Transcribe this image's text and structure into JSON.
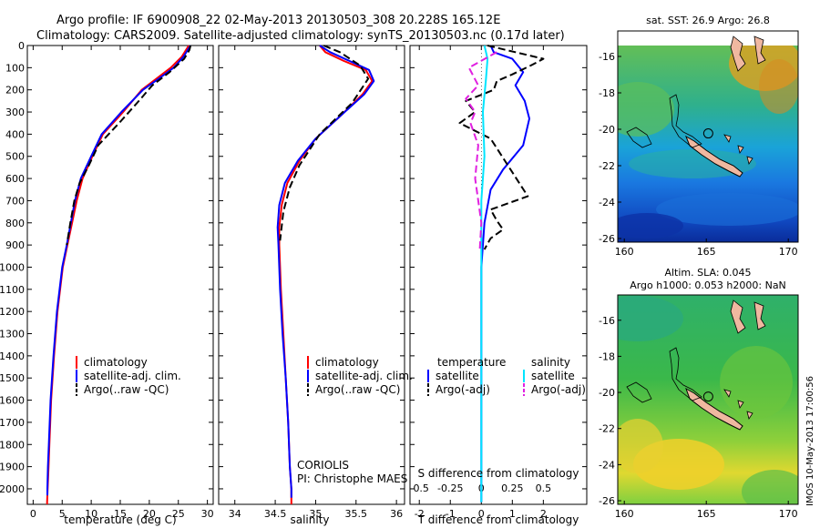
{
  "header": {
    "line1": "Argo profile: IF 6900908_22 02-May-2013 20130503_308 20.228S 165.12E",
    "line2": "Climatology: CARS2009. Satellite-adjusted climatology: synTS_20130503.nc (0.17d later)"
  },
  "colors": {
    "climatology": "#ff0000",
    "satellite": "#0000ff",
    "argo": "#000000",
    "salinity_satellite": "#00e5ff",
    "salinity_argo": "#e020e0"
  },
  "notes": {
    "agency": "CORIOLIS",
    "pi": "PI: Christophe MAES",
    "imos": "IMOS 10-May-2013 17:00:56"
  },
  "chart_data": [
    {
      "type": "line",
      "panel": "temperature",
      "xlabel": "temperature (deg C)",
      "xlim": [
        -1,
        31
      ],
      "ylim": [
        2070,
        0
      ],
      "y_reversed": true,
      "xticks": [
        0,
        5,
        10,
        15,
        20,
        25,
        30
      ],
      "yticks": [
        0,
        100,
        200,
        300,
        400,
        500,
        600,
        700,
        800,
        900,
        1000,
        1100,
        1200,
        1300,
        1400,
        1500,
        1600,
        1700,
        1800,
        1900,
        2000
      ],
      "legend": [
        "climatology",
        "satellite-adj. clim.",
        "Argo(..raw -QC)"
      ],
      "series": [
        {
          "name": "climatology",
          "color": "#ff0000",
          "dash": "",
          "x": [
            26.8,
            25.6,
            23.7,
            21.2,
            18.7,
            15.5,
            12.0,
            10.2,
            8.5,
            7.5,
            6.7,
            5.9,
            5.1,
            4.2,
            3.6,
            3.1,
            2.8,
            2.65,
            2.5,
            2.45,
            2.4,
            2.4
          ],
          "y": [
            0,
            50,
            100,
            150,
            200,
            300,
            400,
            500,
            600,
            700,
            800,
            900,
            1000,
            1200,
            1400,
            1600,
            1800,
            1900,
            2000,
            2030,
            2060,
            2070
          ]
        },
        {
          "name": "satellite-adj. clim.",
          "color": "#0000ff",
          "dash": "",
          "x": [
            27.1,
            26.6,
            25.9,
            24.2,
            21.6,
            18.9,
            15.2,
            11.8,
            10.0,
            8.2,
            7.2,
            6.5,
            5.8,
            5.0,
            4.1,
            3.5,
            3.0,
            2.7,
            2.55,
            2.45,
            2.45
          ],
          "y": [
            0,
            20,
            50,
            100,
            150,
            200,
            300,
            400,
            500,
            600,
            700,
            800,
            900,
            1000,
            1200,
            1400,
            1600,
            1800,
            1900,
            2000,
            2030
          ]
        },
        {
          "name": "Argo(..raw -QC)",
          "color": "#000000",
          "dash": "8,4",
          "x": [
            27.1,
            26.9,
            26.0,
            23.5,
            20.5,
            18.2,
            14.8,
            11.2,
            9.6,
            8.0,
            7.1,
            6.4,
            5.8
          ],
          "y": [
            0,
            20,
            60,
            120,
            180,
            250,
            350,
            450,
            540,
            620,
            700,
            800,
            900
          ]
        }
      ]
    },
    {
      "type": "line",
      "panel": "salinity",
      "xlabel": "salinity",
      "xlim": [
        33.8,
        36.1
      ],
      "ylim": [
        2070,
        0
      ],
      "y_reversed": true,
      "xticks": [
        34,
        34.5,
        35,
        35.5,
        36
      ],
      "legend": [
        "climatology",
        "satellite-adj. clim.",
        "Argo(..raw -QC)"
      ],
      "series": [
        {
          "name": "climatology",
          "color": "#ff0000",
          "dash": "",
          "x": [
            35.05,
            35.12,
            35.35,
            35.62,
            35.7,
            35.58,
            35.3,
            35.0,
            34.8,
            34.65,
            34.58,
            34.55,
            34.55,
            34.57,
            34.6,
            34.63,
            34.66,
            34.68,
            34.7,
            34.7
          ],
          "y": [
            0,
            30,
            70,
            110,
            160,
            220,
            320,
            420,
            520,
            620,
            720,
            820,
            900,
            1100,
            1300,
            1500,
            1700,
            1900,
            2000,
            2070
          ]
        },
        {
          "name": "satellite-adj. clim.",
          "color": "#0000ff",
          "dash": "",
          "x": [
            35.05,
            35.18,
            35.42,
            35.66,
            35.72,
            35.6,
            35.3,
            35.0,
            34.78,
            34.62,
            34.55,
            34.53,
            34.54,
            34.56,
            34.59,
            34.63,
            34.66,
            34.68,
            34.7,
            34.7
          ],
          "y": [
            0,
            30,
            70,
            110,
            160,
            220,
            320,
            420,
            520,
            620,
            720,
            820,
            900,
            1100,
            1300,
            1500,
            1700,
            1900,
            2000,
            2040
          ]
        },
        {
          "name": "Argo(..raw -QC)",
          "color": "#000000",
          "dash": "8,4",
          "x": [
            35.1,
            35.3,
            35.55,
            35.65,
            35.45,
            35.05,
            34.8,
            34.68,
            34.6,
            34.56
          ],
          "y": [
            0,
            30,
            90,
            150,
            260,
            400,
            540,
            640,
            750,
            880
          ]
        }
      ]
    },
    {
      "type": "line",
      "panel": "difference",
      "xlabel": "T difference from climatology",
      "xlabel_top": "S difference from climatology",
      "xlim": [
        -2.3,
        3.4
      ],
      "ylim": [
        2070,
        0
      ],
      "y_reversed": true,
      "xticks": [
        -2,
        -1,
        0,
        1,
        2
      ],
      "xticks_salinity": [
        -0.5,
        -0.25,
        0,
        0.25,
        0.5
      ],
      "legend": [
        "temperature",
        "salinity",
        "satellite",
        "Argo(-adj)",
        "satellite",
        "Argo(-adj)"
      ],
      "legend_titles": [
        "temperature",
        "salinity"
      ],
      "series": [
        {
          "name": "T satellite",
          "color": "#0000ff",
          "dash": "",
          "x": [
            0.3,
            0.4,
            1.0,
            1.35,
            1.1,
            1.4,
            1.55,
            1.35,
            0.7,
            0.3,
            0.1,
            0.0,
            0.0
          ],
          "y": [
            0,
            30,
            60,
            120,
            180,
            250,
            330,
            450,
            560,
            650,
            800,
            1000,
            2060
          ]
        },
        {
          "name": "T Argo(-adj)",
          "color": "#000000",
          "dash": "8,4",
          "x": [
            0.2,
            0.8,
            2.0,
            1.6,
            1.0,
            0.5,
            0.4,
            -0.5,
            -0.2,
            -0.7,
            0.3,
            1.5,
            0.3,
            0.5,
            0.7,
            0.3,
            0.1
          ],
          "y": [
            0,
            20,
            60,
            90,
            130,
            160,
            200,
            250,
            300,
            350,
            420,
            680,
            740,
            790,
            830,
            870,
            920
          ]
        },
        {
          "name": "S satellite",
          "color": "#00e5ff",
          "dash": "",
          "x": [
            0.1,
            0.2,
            0.15,
            0.05,
            0.1,
            0.0,
            0.0
          ],
          "y": [
            0,
            60,
            150,
            300,
            500,
            700,
            2060
          ]
        },
        {
          "name": "S Argo(-adj)",
          "color": "#e020e0",
          "dash": "8,4",
          "x": [
            0.5,
            -0.4,
            -0.1,
            -0.5,
            -0.2,
            -0.35,
            -0.1,
            -0.2,
            0.0,
            -0.05
          ],
          "y": [
            30,
            100,
            180,
            240,
            300,
            350,
            450,
            600,
            800,
            920
          ]
        }
      ]
    },
    {
      "type": "heatmap",
      "panel": "sst_map",
      "title": "sat. SST: 26.9  Argo: 26.8",
      "xticks": [
        160,
        165,
        170
      ],
      "yticks": [
        -16,
        -18,
        -20,
        -22,
        -24,
        -26
      ],
      "xlim": [
        159.6,
        170.6
      ],
      "ylim": [
        -26.2,
        -14.6
      ],
      "profile_marker": [
        165.12,
        -20.228
      ]
    },
    {
      "type": "heatmap",
      "panel": "sla_map",
      "title": "Altim. SLA: 0.045",
      "subtitle": "Argo h1000: 0.053  h2000: NaN",
      "xticks": [
        160,
        165,
        170
      ],
      "yticks": [
        -16,
        -18,
        -20,
        -22,
        -24,
        -26
      ],
      "xlim": [
        159.6,
        170.6
      ],
      "ylim": [
        -26.2,
        -14.6
      ],
      "profile_marker": [
        165.12,
        -20.228
      ]
    }
  ]
}
